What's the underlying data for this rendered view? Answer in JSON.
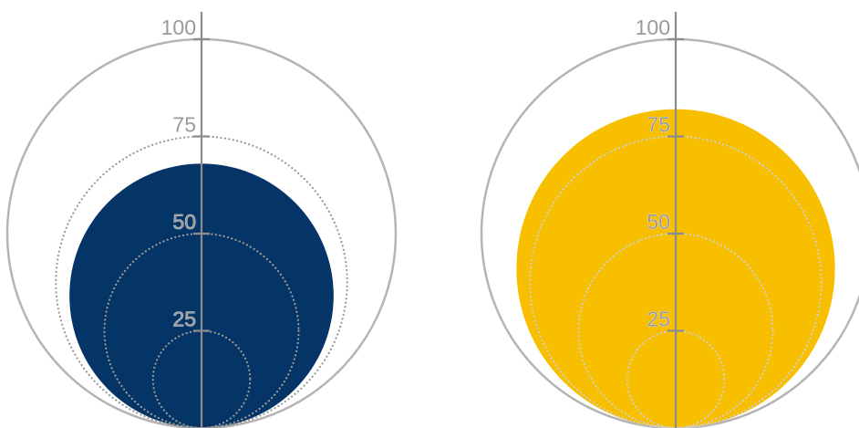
{
  "chart_data": [
    {
      "type": "nested-circle",
      "value": 68,
      "scale_max": 100,
      "ticks": [
        "25",
        "50",
        "75",
        "100"
      ],
      "tick_values": [
        25,
        50,
        75,
        100
      ],
      "fill_color": "#053466",
      "guide_color": "#9a9a9a",
      "axis_color": "#8c8c8c"
    },
    {
      "type": "nested-circle",
      "value": 82,
      "scale_max": 100,
      "ticks": [
        "25",
        "50",
        "75",
        "100"
      ],
      "tick_values": [
        25,
        50,
        75,
        100
      ],
      "fill_color": "#f7bf00",
      "guide_color": "#cfcfcf",
      "axis_color": "#8c8c8c"
    }
  ]
}
